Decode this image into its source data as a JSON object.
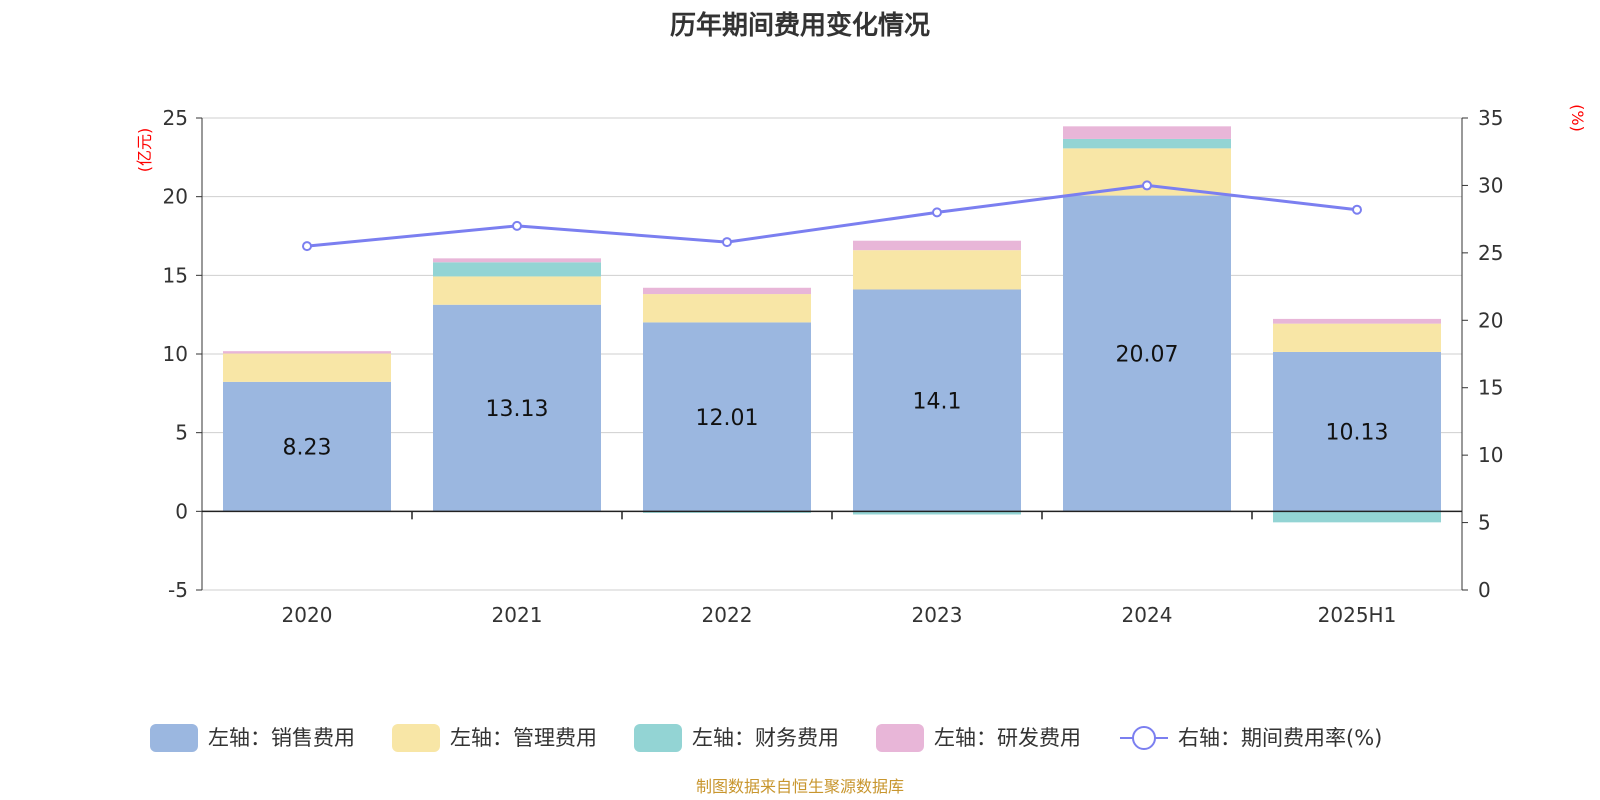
{
  "chart_data": {
    "type": "bar",
    "title": "历年期间费用变化情况",
    "categories": [
      "2020",
      "2021",
      "2022",
      "2023",
      "2024",
      "2025H1"
    ],
    "left_axis": {
      "unit_label": "(亿元)",
      "ylim": [
        -5,
        25
      ],
      "ticks": [
        "-5",
        "0",
        "5",
        "10",
        "15",
        "20",
        "25"
      ]
    },
    "right_axis": {
      "unit_label": "(%)",
      "ylim": [
        0,
        35
      ],
      "ticks": [
        "0",
        "5",
        "10",
        "15",
        "20",
        "25",
        "30",
        "35"
      ]
    },
    "series": [
      {
        "name": "左轴：销售费用",
        "type": "bar",
        "color": "#9bb7e0",
        "values": [
          8.23,
          13.13,
          12.01,
          14.1,
          20.07,
          10.13
        ],
        "data_labels": [
          "8.23",
          "13.13",
          "12.01",
          "14.1",
          "20.07",
          "10.13"
        ]
      },
      {
        "name": "左轴：管理费用",
        "type": "bar",
        "color": "#f8e6a6",
        "values": [
          1.8,
          1.8,
          1.8,
          2.5,
          3.0,
          1.8
        ]
      },
      {
        "name": "左轴：财务费用",
        "type": "bar",
        "color": "#93d4d4",
        "values": [
          0.0,
          0.9,
          -0.1,
          -0.2,
          0.6,
          -0.7
        ]
      },
      {
        "name": "左轴：研发费用",
        "type": "bar",
        "color": "#e8b6d8",
        "values": [
          0.15,
          0.25,
          0.4,
          0.6,
          0.8,
          0.3
        ]
      },
      {
        "name": "右轴：期间费用率(%)",
        "type": "line",
        "axis": "right",
        "color": "#7b7ff0",
        "values": [
          25.5,
          27.0,
          25.8,
          28.0,
          30.0,
          28.2
        ]
      }
    ],
    "grid": true,
    "legend_position": "bottom",
    "source": "制图数据来自恒生聚源数据库"
  }
}
